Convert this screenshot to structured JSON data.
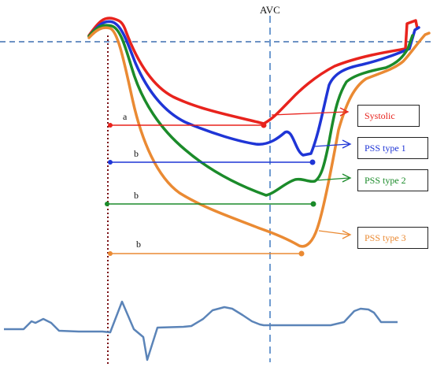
{
  "title": "AVC",
  "colors": {
    "systolic": "#e8231d",
    "pss1": "#1f35d6",
    "pss2": "#1b8b2a",
    "pss3": "#ea8a33",
    "baseline": "#3d6fb0",
    "ecg": "#5b84b8",
    "qrs_line": "#7a0f14"
  },
  "labels": {
    "systolic": "Systolic",
    "pss1": "PSS type 1",
    "pss2": "PSS type 2",
    "pss3": "PSS type 3"
  },
  "intervals": {
    "a": "a",
    "b1": "b",
    "b2": "b",
    "b3": "b"
  }
}
